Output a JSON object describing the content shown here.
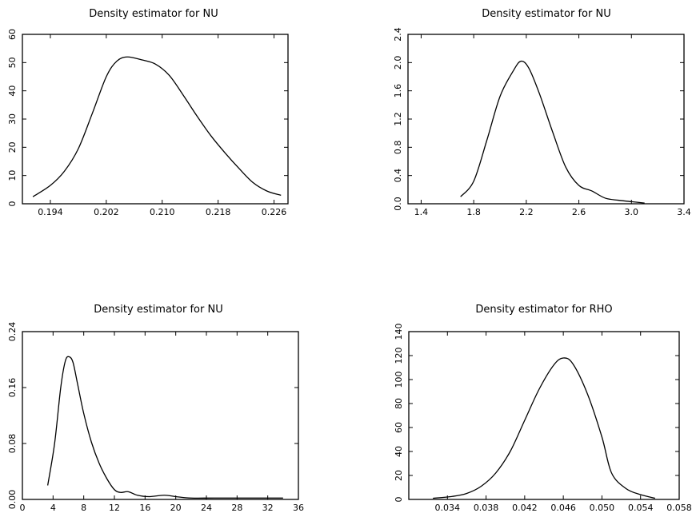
{
  "chart_data": [
    {
      "type": "line",
      "title": "Density estimator for NU",
      "xlabel": "",
      "ylabel": "",
      "xlim": [
        0.19,
        0.228
      ],
      "ylim": [
        0,
        60
      ],
      "xticks": [
        0.194,
        0.202,
        0.21,
        0.218,
        0.226
      ],
      "xtick_labels": [
        "0.194",
        "0.202",
        "0.210",
        "0.218",
        "0.226"
      ],
      "yticks": [
        0,
        10,
        20,
        30,
        40,
        50,
        60
      ],
      "ytick_labels": [
        "0",
        "10",
        "20",
        "30",
        "40",
        "50",
        "60"
      ],
      "grid": false,
      "x": [
        0.1915,
        0.194,
        0.196,
        0.198,
        0.2,
        0.202,
        0.2035,
        0.205,
        0.207,
        0.209,
        0.211,
        0.213,
        0.215,
        0.217,
        0.219,
        0.221,
        0.223,
        0.225,
        0.227
      ],
      "y": [
        2.5,
        6.5,
        11.5,
        19.5,
        32.0,
        45.0,
        50.5,
        52.0,
        51.0,
        49.5,
        45.5,
        38.5,
        31.0,
        24.0,
        18.0,
        12.5,
        7.5,
        4.5,
        3.0
      ]
    },
    {
      "type": "line",
      "title": "Density estimator for NU",
      "xlabel": "",
      "ylabel": "",
      "xlim": [
        1.3,
        3.4
      ],
      "ylim": [
        0,
        2.4
      ],
      "xticks": [
        1.4,
        1.8,
        2.2,
        2.6,
        3.0,
        3.4
      ],
      "xtick_labels": [
        "1.4",
        "1.8",
        "2.2",
        "2.6",
        "3.0",
        "3.4"
      ],
      "yticks": [
        0.0,
        0.4,
        0.8,
        1.2,
        1.6,
        2.0,
        2.4
      ],
      "ytick_labels": [
        "0.0",
        "0.4",
        "0.8",
        "1.2",
        "1.6",
        "2.0",
        "2.4"
      ],
      "grid": false,
      "x": [
        1.7,
        1.8,
        1.9,
        2.0,
        2.1,
        2.16,
        2.22,
        2.3,
        2.4,
        2.5,
        2.6,
        2.7,
        2.8,
        2.9,
        3.0,
        3.1
      ],
      "y": [
        0.1,
        0.32,
        0.9,
        1.52,
        1.88,
        2.02,
        1.92,
        1.56,
        1.02,
        0.52,
        0.26,
        0.18,
        0.08,
        0.05,
        0.03,
        0.01
      ]
    },
    {
      "type": "line",
      "title": "Density estimator for NU",
      "xlabel": "",
      "ylabel": "",
      "xlim": [
        0,
        36
      ],
      "ylim": [
        0,
        0.24
      ],
      "xticks": [
        0,
        4,
        8,
        12,
        16,
        20,
        24,
        28,
        32,
        36
      ],
      "xtick_labels": [
        "0",
        "4",
        "8",
        "12",
        "16",
        "20",
        "24",
        "28",
        "32",
        "36"
      ],
      "yticks": [
        0.0,
        0.08,
        0.16,
        0.24
      ],
      "ytick_labels": [
        "0.00",
        "0.08",
        "0.16",
        "0.24"
      ],
      "grid": false,
      "x": [
        3.3,
        4.2,
        5.0,
        5.6,
        6.1,
        6.6,
        7.2,
        8.0,
        9.0,
        10.0,
        11.0,
        12.0,
        12.8,
        13.8,
        15.0,
        16.5,
        18.5,
        20.0,
        22.0,
        25.0,
        30.0,
        34.0
      ],
      "y": [
        0.02,
        0.08,
        0.16,
        0.198,
        0.204,
        0.196,
        0.165,
        0.123,
        0.082,
        0.052,
        0.03,
        0.014,
        0.01,
        0.011,
        0.006,
        0.004,
        0.006,
        0.004,
        0.002,
        0.002,
        0.002,
        0.002
      ]
    },
    {
      "type": "line",
      "title": "Density estimator for RHO",
      "xlabel": "",
      "ylabel": "",
      "xlim": [
        0.03,
        0.058
      ],
      "ylim": [
        0,
        140
      ],
      "xticks": [
        0.034,
        0.038,
        0.042,
        0.046,
        0.05,
        0.054,
        0.058
      ],
      "xtick_labels": [
        "0.034",
        "0.038",
        "0.042",
        "0.046",
        "0.050",
        "0.054",
        "0.058"
      ],
      "yticks": [
        0,
        20,
        40,
        60,
        80,
        100,
        120,
        140
      ],
      "ytick_labels": [
        "0",
        "20",
        "40",
        "60",
        "80",
        "100",
        "120",
        "140"
      ],
      "grid": false,
      "x": [
        0.0325,
        0.0345,
        0.036,
        0.0375,
        0.039,
        0.0405,
        0.042,
        0.0435,
        0.045,
        0.046,
        0.047,
        0.0485,
        0.05,
        0.051,
        0.0525,
        0.054,
        0.0555
      ],
      "y": [
        1.0,
        2.5,
        5.0,
        11.0,
        22.0,
        40.0,
        66.0,
        92.0,
        112.0,
        118.0,
        113.0,
        88.0,
        52.0,
        22.0,
        9.0,
        4.0,
        1.0
      ]
    }
  ]
}
